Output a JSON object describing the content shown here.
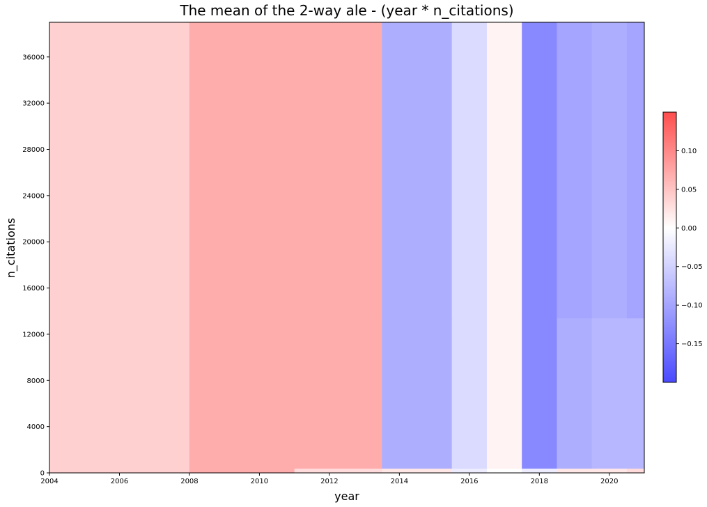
{
  "chart_data": {
    "type": "heatmap",
    "title": "The mean of the 2-way ale - (year * n_citations)",
    "xlabel": "year",
    "ylabel": "n_citations",
    "xlim": [
      2004,
      2021
    ],
    "ylim": [
      0,
      39000
    ],
    "x_ticks": [
      "2004",
      "2006",
      "2008",
      "2010",
      "2012",
      "2014",
      "2016",
      "2018",
      "2020"
    ],
    "y_ticks": [
      "0",
      "4000",
      "8000",
      "12000",
      "16000",
      "20000",
      "24000",
      "28000",
      "32000",
      "36000"
    ],
    "x_edges": [
      2004,
      2008,
      2011,
      2013.5,
      2015.5,
      2016.5,
      2017.5,
      2018.5,
      2019.5,
      2020.5,
      2021
    ],
    "y_edges": [
      0,
      50,
      400,
      13400,
      39000
    ],
    "values": [
      [
        0.04,
        0.06,
        0.06,
        0.07,
        0.04,
        0.05,
        0.09,
        0.07,
        0.07,
        0.09
      ],
      [
        0.04,
        0.07,
        0.03,
        0.02,
        -0.02,
        0.0,
        -0.02,
        0.02,
        0.02,
        0.03
      ],
      [
        0.04,
        0.07,
        0.07,
        -0.09,
        -0.04,
        0.01,
        -0.13,
        -0.09,
        -0.08,
        -0.08
      ],
      [
        0.04,
        0.07,
        0.07,
        -0.09,
        -0.04,
        0.01,
        -0.13,
        -0.1,
        -0.09,
        -0.1
      ]
    ],
    "colorbar": {
      "min": -0.2,
      "max": 0.15,
      "ticks": [
        "0.10",
        "0.05",
        "0.00",
        "−0.05",
        "−0.10",
        "−0.15"
      ],
      "colors": {
        "negative": "#4a4aff",
        "zero": "#ffffff",
        "positive": "#ff4d4d"
      }
    }
  }
}
